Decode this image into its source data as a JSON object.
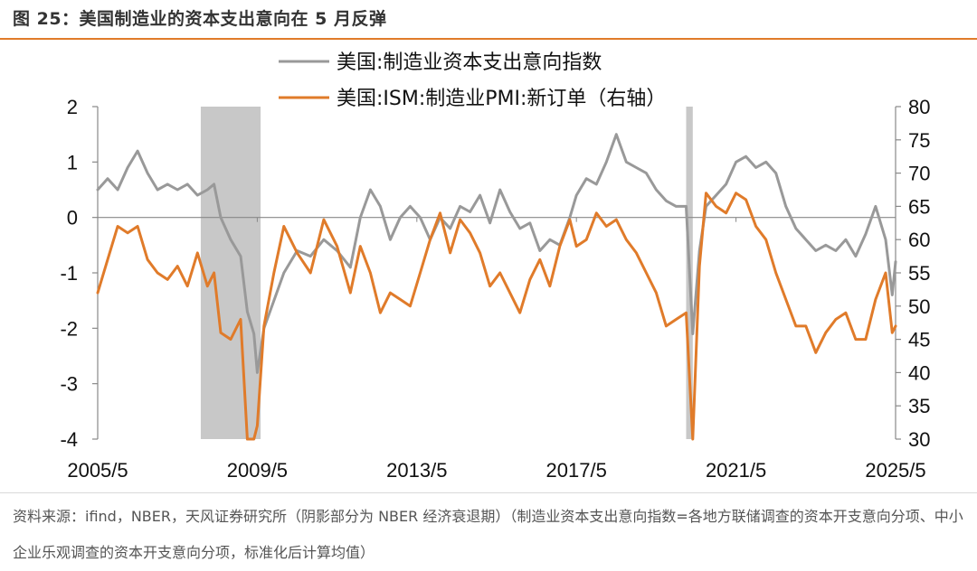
{
  "header": {
    "title": "图 25：美国制造业的资本支出意向在 5 月反弹"
  },
  "footer": {
    "source": "资料来源：ifind，NBER，天风证券研究所（阴影部分为 NBER 经济衰退期）（制造业资本支出意向指数=各地方联储调查的资本开支意向分项、中小企业乐观调查的资本开支意向分项，标准化后计算均值）"
  },
  "chart_data": {
    "type": "line",
    "x_tick_labels": [
      "2005/5",
      "2009/5",
      "2013/5",
      "2017/5",
      "2021/5",
      "2025/5"
    ],
    "y_left": {
      "ticks": [
        2,
        1,
        0,
        -1,
        -2,
        -3,
        -4
      ],
      "lim": [
        -4,
        2
      ]
    },
    "y_right": {
      "ticks": [
        80,
        75,
        70,
        65,
        60,
        55,
        50,
        45,
        40,
        35,
        30
      ],
      "lim": [
        30,
        80
      ]
    },
    "x_range": [
      "2005/5",
      "2025/5"
    ],
    "reference_line": {
      "axis": "left",
      "value": 0
    },
    "recessions": [
      {
        "start": "2007/12",
        "end": "2009/6"
      },
      {
        "start": "2020/2",
        "end": "2020/4"
      }
    ],
    "series": [
      {
        "name": "美国:制造业资本支出意向指数",
        "axis": "left",
        "color": "#999999",
        "points": [
          [
            "2005/5",
            0.5
          ],
          [
            "2005/8",
            0.7
          ],
          [
            "2005/11",
            0.5
          ],
          [
            "2006/2",
            0.9
          ],
          [
            "2006/5",
            1.2
          ],
          [
            "2006/8",
            0.8
          ],
          [
            "2006/11",
            0.5
          ],
          [
            "2007/2",
            0.6
          ],
          [
            "2007/5",
            0.5
          ],
          [
            "2007/8",
            0.6
          ],
          [
            "2007/11",
            0.4
          ],
          [
            "2008/2",
            0.5
          ],
          [
            "2008/4",
            0.6
          ],
          [
            "2008/6",
            0.0
          ],
          [
            "2008/9",
            -0.4
          ],
          [
            "2008/12",
            -0.7
          ],
          [
            "2009/2",
            -1.7
          ],
          [
            "2009/4",
            -2.1
          ],
          [
            "2009/5",
            -2.8
          ],
          [
            "2009/7",
            -2.0
          ],
          [
            "2009/10",
            -1.5
          ],
          [
            "2010/1",
            -1.0
          ],
          [
            "2010/5",
            -0.6
          ],
          [
            "2010/9",
            -0.7
          ],
          [
            "2011/1",
            -0.4
          ],
          [
            "2011/5",
            -0.6
          ],
          [
            "2011/9",
            -0.9
          ],
          [
            "2011/12",
            0.0
          ],
          [
            "2012/3",
            0.5
          ],
          [
            "2012/6",
            0.2
          ],
          [
            "2012/9",
            -0.4
          ],
          [
            "2012/12",
            0.0
          ],
          [
            "2013/3",
            0.2
          ],
          [
            "2013/6",
            0.0
          ],
          [
            "2013/9",
            -0.4
          ],
          [
            "2013/12",
            0.0
          ],
          [
            "2014/3",
            -0.2
          ],
          [
            "2014/6",
            0.2
          ],
          [
            "2014/9",
            0.1
          ],
          [
            "2014/12",
            0.4
          ],
          [
            "2015/3",
            -0.1
          ],
          [
            "2015/6",
            0.5
          ],
          [
            "2015/9",
            0.1
          ],
          [
            "2015/12",
            -0.2
          ],
          [
            "2016/3",
            -0.1
          ],
          [
            "2016/6",
            -0.6
          ],
          [
            "2016/9",
            -0.4
          ],
          [
            "2016/12",
            -0.5
          ],
          [
            "2017/3",
            0.0
          ],
          [
            "2017/5",
            0.4
          ],
          [
            "2017/8",
            0.7
          ],
          [
            "2017/11",
            0.6
          ],
          [
            "2018/2",
            1.0
          ],
          [
            "2018/5",
            1.5
          ],
          [
            "2018/8",
            1.0
          ],
          [
            "2018/11",
            0.9
          ],
          [
            "2019/2",
            0.8
          ],
          [
            "2019/5",
            0.5
          ],
          [
            "2019/8",
            0.3
          ],
          [
            "2019/11",
            0.2
          ],
          [
            "2020/2",
            0.2
          ],
          [
            "2020/4",
            -2.1
          ],
          [
            "2020/6",
            -0.6
          ],
          [
            "2020/8",
            0.2
          ],
          [
            "2020/11",
            0.4
          ],
          [
            "2021/2",
            0.6
          ],
          [
            "2021/5",
            1.0
          ],
          [
            "2021/8",
            1.1
          ],
          [
            "2021/11",
            0.9
          ],
          [
            "2022/2",
            1.0
          ],
          [
            "2022/5",
            0.8
          ],
          [
            "2022/8",
            0.2
          ],
          [
            "2022/11",
            -0.2
          ],
          [
            "2023/2",
            -0.4
          ],
          [
            "2023/5",
            -0.6
          ],
          [
            "2023/8",
            -0.5
          ],
          [
            "2023/11",
            -0.6
          ],
          [
            "2024/2",
            -0.4
          ],
          [
            "2024/5",
            -0.7
          ],
          [
            "2024/8",
            -0.3
          ],
          [
            "2024/11",
            0.2
          ],
          [
            "2025/2",
            -0.4
          ],
          [
            "2025/4",
            -1.4
          ],
          [
            "2025/5",
            -0.8
          ]
        ]
      },
      {
        "name": "美国:ISM:制造业PMI:新订单（右轴）",
        "axis": "right",
        "color": "#e07b2a",
        "points": [
          [
            "2005/5",
            52
          ],
          [
            "2005/8",
            57
          ],
          [
            "2005/11",
            62
          ],
          [
            "2006/2",
            61
          ],
          [
            "2006/5",
            62
          ],
          [
            "2006/8",
            57
          ],
          [
            "2006/11",
            55
          ],
          [
            "2007/2",
            54
          ],
          [
            "2007/5",
            56
          ],
          [
            "2007/8",
            53
          ],
          [
            "2007/11",
            58
          ],
          [
            "2008/2",
            53
          ],
          [
            "2008/4",
            55
          ],
          [
            "2008/6",
            46
          ],
          [
            "2008/9",
            45
          ],
          [
            "2008/12",
            48
          ],
          [
            "2009/2",
            23
          ],
          [
            "2009/4",
            28
          ],
          [
            "2009/5",
            32
          ],
          [
            "2009/7",
            47
          ],
          [
            "2009/10",
            55
          ],
          [
            "2010/1",
            62
          ],
          [
            "2010/5",
            58
          ],
          [
            "2010/9",
            55
          ],
          [
            "2011/1",
            63
          ],
          [
            "2011/5",
            59
          ],
          [
            "2011/9",
            52
          ],
          [
            "2011/12",
            59
          ],
          [
            "2012/3",
            55
          ],
          [
            "2012/6",
            49
          ],
          [
            "2012/9",
            52
          ],
          [
            "2012/12",
            51
          ],
          [
            "2013/3",
            50
          ],
          [
            "2013/6",
            55
          ],
          [
            "2013/9",
            60
          ],
          [
            "2013/12",
            64
          ],
          [
            "2014/3",
            58
          ],
          [
            "2014/6",
            63
          ],
          [
            "2014/9",
            61
          ],
          [
            "2014/12",
            58
          ],
          [
            "2015/3",
            53
          ],
          [
            "2015/6",
            55
          ],
          [
            "2015/9",
            52
          ],
          [
            "2015/12",
            49
          ],
          [
            "2016/3",
            54
          ],
          [
            "2016/6",
            57
          ],
          [
            "2016/9",
            53
          ],
          [
            "2016/12",
            59
          ],
          [
            "2017/3",
            63
          ],
          [
            "2017/5",
            59
          ],
          [
            "2017/8",
            60
          ],
          [
            "2017/11",
            64
          ],
          [
            "2018/2",
            62
          ],
          [
            "2018/5",
            63
          ],
          [
            "2018/8",
            60
          ],
          [
            "2018/11",
            58
          ],
          [
            "2019/2",
            55
          ],
          [
            "2019/5",
            52
          ],
          [
            "2019/8",
            47
          ],
          [
            "2019/11",
            48
          ],
          [
            "2020/2",
            49
          ],
          [
            "2020/4",
            27
          ],
          [
            "2020/6",
            56
          ],
          [
            "2020/8",
            67
          ],
          [
            "2020/11",
            65
          ],
          [
            "2021/2",
            64
          ],
          [
            "2021/5",
            67
          ],
          [
            "2021/8",
            66
          ],
          [
            "2021/11",
            62
          ],
          [
            "2022/2",
            60
          ],
          [
            "2022/5",
            55
          ],
          [
            "2022/8",
            51
          ],
          [
            "2022/11",
            47
          ],
          [
            "2023/2",
            47
          ],
          [
            "2023/5",
            43
          ],
          [
            "2023/8",
            46
          ],
          [
            "2023/11",
            48
          ],
          [
            "2024/2",
            49
          ],
          [
            "2024/5",
            45
          ],
          [
            "2024/8",
            45
          ],
          [
            "2024/11",
            51
          ],
          [
            "2025/2",
            55
          ],
          [
            "2025/4",
            46
          ],
          [
            "2025/5",
            47
          ]
        ]
      }
    ]
  }
}
